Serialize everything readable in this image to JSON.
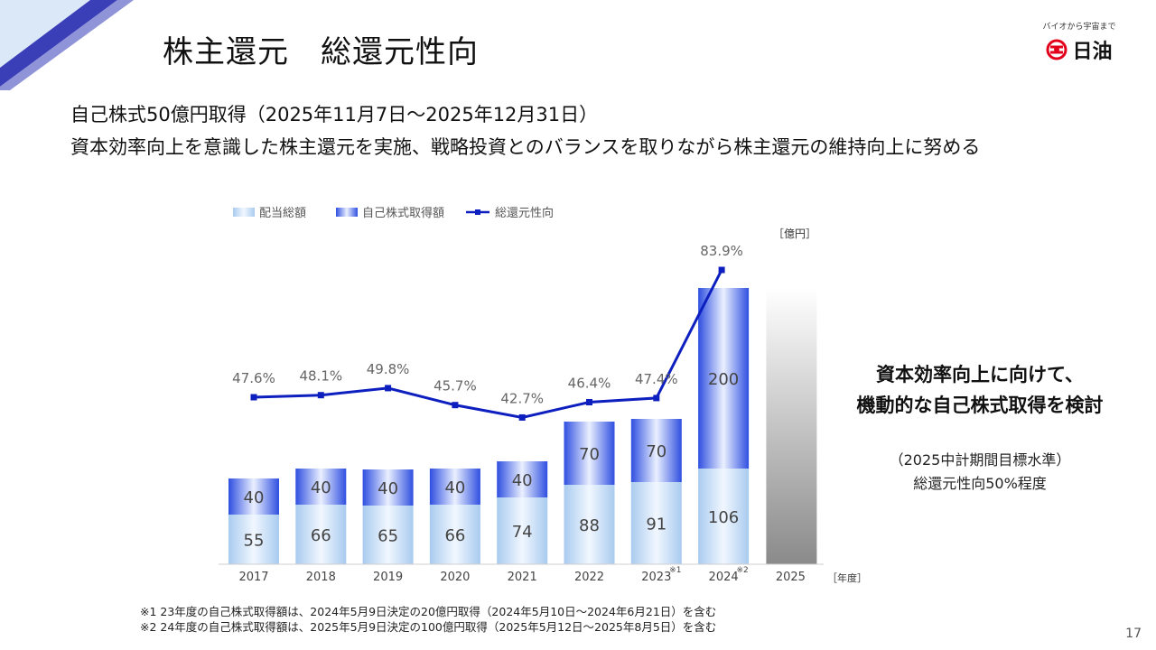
{
  "header": {
    "title": "株主還元　総還元性向",
    "logo_tagline": "バイオから宇宙まで",
    "logo_name": "日油"
  },
  "lead": {
    "line1": "自己株式50億円取得（2025年11月7日～2025年12月31日）",
    "line2": "資本効率向上を意識した株主還元を実施、戦略投資とのバランスを取りながら株主還元の維持向上に努める"
  },
  "chart_data": {
    "type": "bar",
    "stacked": true,
    "title": "",
    "legend": [
      "配当総額",
      "自己株式取得額",
      "総還元性向"
    ],
    "unit_left": "［億円］",
    "unit_bottom": "［年度］",
    "categories": [
      "2017",
      "2018",
      "2019",
      "2020",
      "2021",
      "2022",
      "2023",
      "2024",
      "2025"
    ],
    "category_marks": [
      "",
      "",
      "",
      "",
      "",
      "",
      "※1",
      "※2",
      ""
    ],
    "series": [
      {
        "name": "配当総額",
        "values": [
          55,
          66,
          65,
          66,
          74,
          88,
          91,
          106,
          null
        ]
      },
      {
        "name": "自己株式取得額",
        "values": [
          40,
          40,
          40,
          40,
          40,
          70,
          70,
          200,
          null
        ]
      },
      {
        "name": "総還元性向",
        "type": "line",
        "values": [
          47.6,
          48.1,
          49.8,
          45.7,
          42.7,
          46.4,
          47.4,
          83.9,
          null
        ]
      }
    ],
    "ratio_labels": [
      "47.6%",
      "48.1%",
      "49.8%",
      "45.7%",
      "42.7%",
      "46.4%",
      "47.4%",
      "83.9%"
    ],
    "placeholder_category": "2025",
    "ylim": [
      0,
      330
    ]
  },
  "callout": {
    "heading_line1": "資本効率向上に向けて、",
    "heading_line2": "機動的な自己株式取得を検討",
    "sub_line1": "（2025中計期間目標水準）",
    "sub_line2": "総還元性向50%程度"
  },
  "footnotes": {
    "note1": "※1  23年度の自己株式取得額は、2024年5月9日決定の20億円取得（2024年5月10日～2024年6月21日）を含む",
    "note2": "※2  24年度の自己株式取得額は、2025年5月9日決定の100億円取得（2025年5月12日～2025年8月5日）を含む"
  },
  "page_number": "17",
  "colors": {
    "line": "#0e1fbf",
    "buyback_dark": "#2f4fe0",
    "buyback_light": "#eaf0ff",
    "dividend_dark": "#a9cbef",
    "dividend_light": "#f1f7ff",
    "placeholder_top": "#ffffff",
    "placeholder_bottom": "#8a8a8a",
    "corner": "#3a3fb8"
  }
}
